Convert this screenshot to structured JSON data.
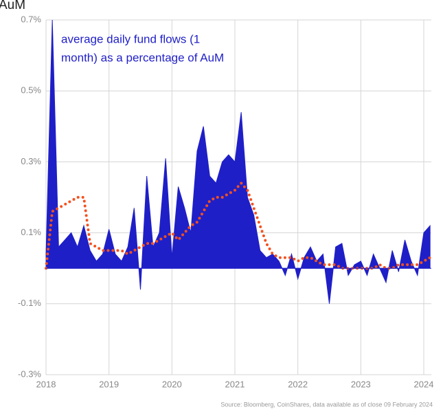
{
  "chart_data": {
    "type": "area",
    "title": "AuM",
    "annotation": [
      "average daily fund flows (1",
      "month) as a percentage of AuM"
    ],
    "source": "Source: Bloomberg, CoinShares, data available as of close 09 February 2024",
    "x": [
      2018.0,
      2018.1,
      2018.2,
      2018.3,
      2018.4,
      2018.5,
      2018.6,
      2018.7,
      2018.8,
      2018.9,
      2019.0,
      2019.1,
      2019.2,
      2019.3,
      2019.4,
      2019.5,
      2019.6,
      2019.7,
      2019.8,
      2019.9,
      2020.0,
      2020.1,
      2020.2,
      2020.3,
      2020.4,
      2020.5,
      2020.6,
      2020.7,
      2020.8,
      2020.9,
      2021.0,
      2021.1,
      2021.2,
      2021.3,
      2021.4,
      2021.5,
      2021.6,
      2021.7,
      2021.8,
      2021.9,
      2022.0,
      2022.1,
      2022.2,
      2022.3,
      2022.4,
      2022.5,
      2022.6,
      2022.7,
      2022.8,
      2022.9,
      2023.0,
      2023.1,
      2023.2,
      2023.3,
      2023.4,
      2023.5,
      2023.6,
      2023.7,
      2023.8,
      2023.9,
      2024.0,
      2024.1
    ],
    "series": [
      {
        "type": "area",
        "color": "#1f1fc8",
        "values": [
          0.04,
          0.7,
          0.06,
          0.08,
          0.1,
          0.06,
          0.12,
          0.05,
          0.02,
          0.04,
          0.11,
          0.04,
          0.02,
          0.06,
          0.17,
          -0.06,
          0.26,
          0.06,
          0.1,
          0.31,
          0.03,
          0.23,
          0.17,
          0.1,
          0.33,
          0.4,
          0.26,
          0.24,
          0.3,
          0.32,
          0.3,
          0.44,
          0.2,
          0.15,
          0.05,
          0.03,
          0.04,
          0.02,
          -0.02,
          0.04,
          -0.03,
          0.03,
          0.06,
          0.02,
          0.04,
          -0.1,
          0.06,
          0.07,
          -0.02,
          0.01,
          0.02,
          -0.02,
          0.04,
          0.0,
          -0.04,
          0.05,
          -0.01,
          0.08,
          0.02,
          -0.02,
          0.1,
          0.12
        ]
      },
      {
        "type": "line",
        "style": "dotted",
        "color": "#f4511e",
        "values": [
          0.0,
          0.16,
          0.17,
          0.18,
          0.19,
          0.2,
          0.2,
          0.07,
          0.06,
          0.05,
          0.05,
          0.05,
          0.05,
          0.04,
          0.05,
          0.06,
          0.07,
          0.07,
          0.08,
          0.09,
          0.1,
          0.08,
          0.1,
          0.12,
          0.13,
          0.16,
          0.19,
          0.2,
          0.2,
          0.21,
          0.22,
          0.24,
          0.22,
          0.17,
          0.12,
          0.07,
          0.04,
          0.03,
          0.03,
          0.03,
          0.02,
          0.03,
          0.03,
          0.02,
          0.01,
          0.01,
          0.01,
          0.0,
          0.0,
          0.0,
          0.0,
          0.0,
          0.0,
          0.01,
          0.0,
          0.0,
          0.01,
          0.01,
          0.01,
          0.01,
          0.02,
          0.03
        ]
      }
    ],
    "xlim": [
      2018,
      2024.12
    ],
    "xticks": [
      2018,
      2019,
      2020,
      2021,
      2022,
      2023,
      2024
    ],
    "ylim": [
      -0.3,
      0.7
    ],
    "yticks": [
      {
        "value": -0.3,
        "label": "-0.3%"
      },
      {
        "value": -0.1,
        "label": "-0.1%"
      },
      {
        "value": 0.1,
        "label": "0.1%"
      },
      {
        "value": 0.3,
        "label": "0.3%"
      },
      {
        "value": 0.5,
        "label": "0.5%"
      },
      {
        "value": 0.7,
        "label": "0.7%"
      }
    ],
    "grid": true
  }
}
